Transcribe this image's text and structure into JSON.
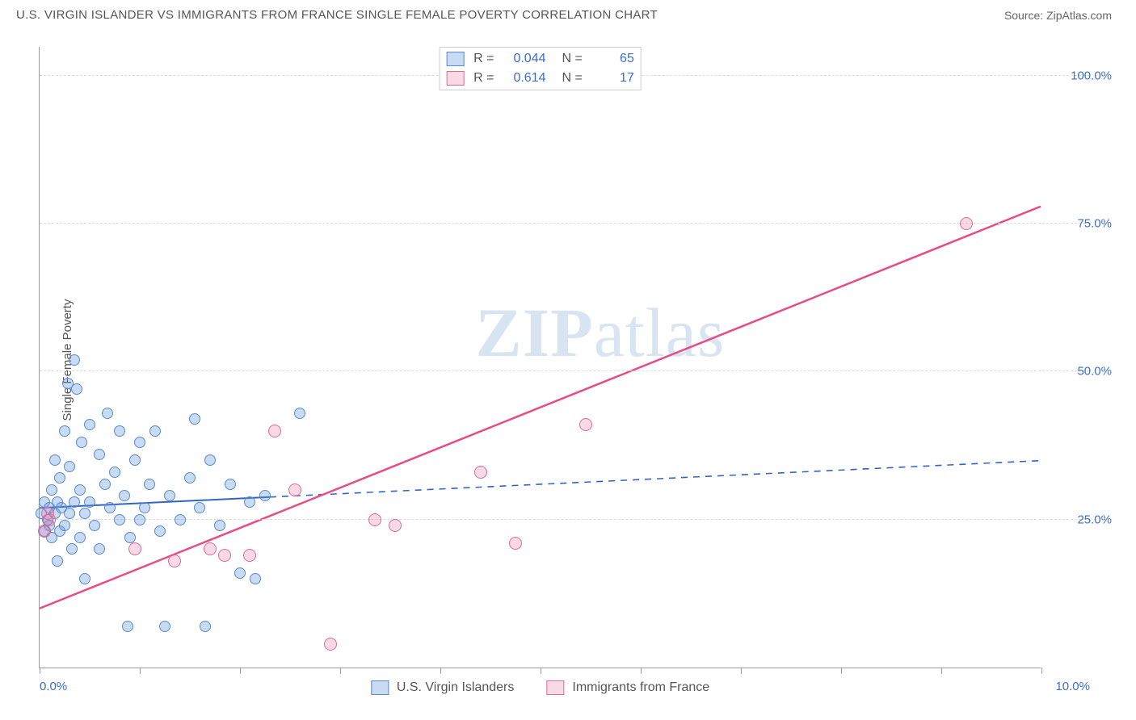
{
  "header": {
    "title": "U.S. VIRGIN ISLANDER VS IMMIGRANTS FROM FRANCE SINGLE FEMALE POVERTY CORRELATION CHART",
    "source_prefix": "Source: ",
    "source_name": "ZipAtlas.com"
  },
  "chart": {
    "type": "scatter",
    "ylabel": "Single Female Poverty",
    "xlim": [
      0,
      10
    ],
    "ylim": [
      0,
      105
    ],
    "xtick_positions": [
      0,
      1,
      2,
      3,
      4,
      5,
      6,
      7,
      8,
      9,
      10
    ],
    "xtick_labels": {
      "0": "0.0%",
      "10": "10.0%"
    },
    "ytick_positions": [
      25,
      50,
      75,
      100
    ],
    "ytick_labels": {
      "25": "25.0%",
      "50": "50.0%",
      "75": "75.0%",
      "100": "100.0%"
    },
    "grid_color": "#dddddd",
    "axis_color": "#999999",
    "background_color": "#ffffff",
    "watermark_text_bold": "ZIP",
    "watermark_text_rest": "atlas",
    "watermark_color": "#d9e4f2",
    "series": [
      {
        "id": "usvi",
        "label": "U.S. Virgin Islanders",
        "color_fill": "rgba(100,150,220,0.35)",
        "color_stroke": "#5a8ad0",
        "marker_radius": 7,
        "R": "0.044",
        "N": "65",
        "trend": {
          "x1": 0,
          "y1": 27,
          "x2": 10,
          "y2": 35,
          "solid_until_x": 2.3,
          "stroke": "#2f66c4",
          "width": 2
        },
        "points": [
          [
            0.02,
            26
          ],
          [
            0.05,
            23
          ],
          [
            0.05,
            28
          ],
          [
            0.08,
            25
          ],
          [
            0.1,
            27
          ],
          [
            0.1,
            24
          ],
          [
            0.12,
            22
          ],
          [
            0.12,
            30
          ],
          [
            0.15,
            26
          ],
          [
            0.15,
            35
          ],
          [
            0.18,
            28
          ],
          [
            0.18,
            18
          ],
          [
            0.2,
            32
          ],
          [
            0.2,
            23
          ],
          [
            0.22,
            27
          ],
          [
            0.25,
            40
          ],
          [
            0.25,
            24
          ],
          [
            0.28,
            48
          ],
          [
            0.3,
            26
          ],
          [
            0.3,
            34
          ],
          [
            0.32,
            20
          ],
          [
            0.35,
            52
          ],
          [
            0.35,
            28
          ],
          [
            0.37,
            47
          ],
          [
            0.4,
            30
          ],
          [
            0.4,
            22
          ],
          [
            0.42,
            38
          ],
          [
            0.45,
            26
          ],
          [
            0.45,
            15
          ],
          [
            0.5,
            41
          ],
          [
            0.5,
            28
          ],
          [
            0.55,
            24
          ],
          [
            0.6,
            36
          ],
          [
            0.6,
            20
          ],
          [
            0.65,
            31
          ],
          [
            0.68,
            43
          ],
          [
            0.7,
            27
          ],
          [
            0.75,
            33
          ],
          [
            0.8,
            25
          ],
          [
            0.8,
            40
          ],
          [
            0.85,
            29
          ],
          [
            0.88,
            7
          ],
          [
            0.9,
            22
          ],
          [
            0.95,
            35
          ],
          [
            1.0,
            38
          ],
          [
            1.0,
            25
          ],
          [
            1.05,
            27
          ],
          [
            1.1,
            31
          ],
          [
            1.15,
            40
          ],
          [
            1.2,
            23
          ],
          [
            1.25,
            7
          ],
          [
            1.3,
            29
          ],
          [
            1.4,
            25
          ],
          [
            1.5,
            32
          ],
          [
            1.55,
            42
          ],
          [
            1.6,
            27
          ],
          [
            1.65,
            7
          ],
          [
            1.7,
            35
          ],
          [
            1.8,
            24
          ],
          [
            1.9,
            31
          ],
          [
            2.0,
            16
          ],
          [
            2.1,
            28
          ],
          [
            2.15,
            15
          ],
          [
            2.25,
            29
          ],
          [
            2.6,
            43
          ]
        ]
      },
      {
        "id": "france",
        "label": "Immigrants from France",
        "color_fill": "rgba(235,120,160,0.28)",
        "color_stroke": "#e06a94",
        "marker_radius": 8,
        "R": "0.614",
        "N": "17",
        "trend": {
          "x1": 0,
          "y1": 10,
          "x2": 10,
          "y2": 78,
          "solid_until_x": 10,
          "stroke": "#e94b86",
          "width": 2.5
        },
        "points": [
          [
            0.05,
            23
          ],
          [
            0.08,
            26
          ],
          [
            0.1,
            25
          ],
          [
            0.95,
            20
          ],
          [
            1.35,
            18
          ],
          [
            1.7,
            20
          ],
          [
            1.85,
            19
          ],
          [
            2.1,
            19
          ],
          [
            2.35,
            40
          ],
          [
            2.55,
            30
          ],
          [
            2.9,
            4
          ],
          [
            3.35,
            25
          ],
          [
            3.55,
            24
          ],
          [
            4.4,
            33
          ],
          [
            4.75,
            21
          ],
          [
            5.45,
            41
          ],
          [
            9.25,
            75
          ]
        ]
      }
    ],
    "stat_legend": {
      "r_label": "R =",
      "n_label": "N ="
    }
  }
}
